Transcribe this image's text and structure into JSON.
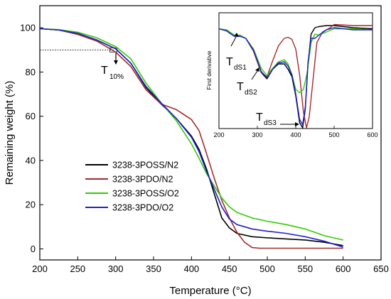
{
  "chart_data": [
    {
      "type": "line",
      "title": "",
      "xlabel": "Temperature (°C)",
      "ylabel": "Remaining weight (%)",
      "xlim": [
        200,
        650
      ],
      "ylim": [
        -5,
        110
      ],
      "xticks": [
        "200",
        "250",
        "300",
        "350",
        "400",
        "450",
        "500",
        "550",
        "600",
        "650"
      ],
      "yticks": [
        "0",
        "20",
        "40",
        "60",
        "80",
        "100"
      ],
      "grid": false,
      "legend_position": "center-left",
      "series": [
        {
          "name": "3238-3POSS/N2",
          "color": "#000000",
          "x": [
            200,
            225,
            250,
            275,
            300,
            320,
            340,
            360,
            380,
            400,
            410,
            420,
            430,
            440,
            450,
            460,
            480,
            500,
            525,
            550,
            575,
            600
          ],
          "y": [
            99.6,
            99,
            97.5,
            94.5,
            90.5,
            84,
            73,
            65.5,
            59,
            51,
            45,
            36,
            25,
            14,
            9.5,
            7,
            5.5,
            5,
            4.5,
            4,
            3,
            1.5
          ]
        },
        {
          "name": "3238-3PDO/N2",
          "color": "#a52a2a",
          "x": [
            200,
            225,
            250,
            275,
            300,
            320,
            340,
            360,
            380,
            400,
            410,
            420,
            430,
            440,
            450,
            460,
            470,
            480,
            490,
            500,
            550,
            600
          ],
          "y": [
            99.6,
            99,
            97,
            94,
            89,
            82.5,
            72,
            65.5,
            63,
            58.5,
            53.5,
            43,
            32,
            22,
            14,
            7.5,
            3,
            0.6,
            0.3,
            0.3,
            0.3,
            0.3
          ]
        },
        {
          "name": "3238-3POSS/O2",
          "color": "#33cc00",
          "x": [
            200,
            225,
            250,
            275,
            300,
            320,
            340,
            360,
            380,
            400,
            410,
            420,
            430,
            440,
            450,
            460,
            480,
            500,
            525,
            550,
            575,
            600
          ],
          "y": [
            99.6,
            99.2,
            98,
            95.5,
            91.5,
            86,
            75,
            66,
            58,
            47.5,
            41,
            34,
            28.5,
            23,
            19,
            16.5,
            14,
            12.5,
            11,
            9,
            6,
            4
          ]
        },
        {
          "name": "3238-3PDO/O2",
          "color": "#1f1fd1",
          "x": [
            200,
            225,
            250,
            275,
            300,
            320,
            340,
            360,
            380,
            400,
            410,
            420,
            430,
            440,
            450,
            460,
            480,
            500,
            525,
            550,
            575,
            600
          ],
          "y": [
            99.6,
            99,
            97.5,
            94.5,
            90.5,
            84,
            73.5,
            66,
            59,
            50.5,
            44,
            35,
            27,
            19,
            13.5,
            11,
            9,
            8,
            7,
            5.5,
            3.5,
            0.8
          ]
        }
      ],
      "reference_line": {
        "y": 90,
        "x_end": 297
      },
      "annotations": [
        {
          "text": "T",
          "sub": "10%",
          "at_x": 297,
          "at_y": 90
        }
      ]
    },
    {
      "type": "line",
      "title": "",
      "xlabel": "",
      "ylabel": "First derivative",
      "xlim": [
        200,
        600
      ],
      "ylim": [
        0,
        1
      ],
      "xticks": [
        "200",
        "300",
        "400",
        "500",
        "600"
      ],
      "grid": false,
      "series": [
        {
          "name": "3238-3POSS/N2",
          "color": "#000000",
          "x": [
            200,
            220,
            240,
            255,
            270,
            290,
            310,
            325,
            340,
            355,
            370,
            380,
            390,
            400,
            410,
            418,
            425,
            432,
            440,
            450,
            460,
            480,
            500,
            550,
            600
          ],
          "y": [
            0.93,
            0.91,
            0.86,
            0.86,
            0.84,
            0.72,
            0.52,
            0.46,
            0.55,
            0.6,
            0.6,
            0.55,
            0.48,
            0.3,
            0.05,
            0.0,
            0.18,
            0.6,
            0.88,
            0.94,
            0.95,
            0.96,
            0.96,
            0.94,
            0.93
          ]
        },
        {
          "name": "3238-3PDO/N2",
          "color": "#a52a2a",
          "x": [
            200,
            220,
            240,
            255,
            270,
            290,
            310,
            325,
            340,
            355,
            370,
            380,
            390,
            400,
            410,
            420,
            428,
            435,
            445,
            455,
            470,
            490,
            500,
            550,
            600
          ],
          "y": [
            0.93,
            0.91,
            0.86,
            0.86,
            0.84,
            0.72,
            0.52,
            0.48,
            0.63,
            0.77,
            0.84,
            0.85,
            0.83,
            0.74,
            0.5,
            0.15,
            0.0,
            0.1,
            0.45,
            0.8,
            0.9,
            0.94,
            0.97,
            0.96,
            0.96
          ]
        },
        {
          "name": "3238-3POSS/O2",
          "color": "#33cc00",
          "x": [
            200,
            220,
            240,
            255,
            270,
            290,
            310,
            325,
            340,
            355,
            370,
            380,
            390,
            400,
            410,
            420,
            430,
            440,
            450,
            460,
            480,
            500,
            550,
            600
          ],
          "y": [
            0.93,
            0.92,
            0.87,
            0.87,
            0.84,
            0.74,
            0.56,
            0.49,
            0.56,
            0.62,
            0.64,
            0.6,
            0.5,
            0.36,
            0.33,
            0.36,
            0.52,
            0.8,
            0.88,
            0.87,
            0.9,
            0.93,
            0.93,
            0.92
          ]
        },
        {
          "name": "3238-3PDO/O2",
          "color": "#1f1fd1",
          "x": [
            200,
            220,
            240,
            255,
            270,
            290,
            310,
            325,
            340,
            355,
            370,
            380,
            390,
            400,
            410,
            418,
            425,
            432,
            440,
            450,
            460,
            480,
            500,
            550,
            600
          ],
          "y": [
            0.93,
            0.91,
            0.86,
            0.86,
            0.84,
            0.73,
            0.53,
            0.47,
            0.55,
            0.61,
            0.62,
            0.58,
            0.5,
            0.32,
            0.08,
            0.03,
            0.2,
            0.62,
            0.84,
            0.84,
            0.87,
            0.92,
            0.94,
            0.92,
            0.92
          ]
        }
      ],
      "annotations": [
        {
          "text": "T",
          "sub": "dS1"
        },
        {
          "text": "T",
          "sub": "dS2"
        },
        {
          "text": "T",
          "sub": "dS3"
        }
      ]
    }
  ]
}
